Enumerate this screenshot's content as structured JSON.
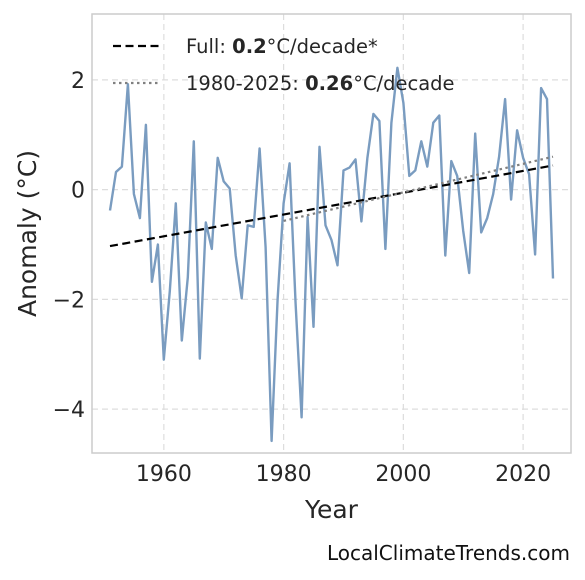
{
  "chart_data": {
    "type": "line",
    "xlabel": "Year",
    "ylabel": "Anomaly (°C)",
    "xlim": [
      1948,
      2028
    ],
    "ylim": [
      -4.8,
      3.2
    ],
    "xticks": [
      1960,
      1980,
      2000,
      2020
    ],
    "yticks": [
      -4,
      -2,
      0,
      2
    ],
    "ytick_labels": [
      "−4",
      "−2",
      "0",
      "2"
    ],
    "grid": true,
    "legend_position": "top-left",
    "series": [
      {
        "color": "#7a9cc0",
        "style": "solid",
        "x": [
          1951,
          1952,
          1953,
          1954,
          1955,
          1956,
          1957,
          1958,
          1959,
          1960,
          1961,
          1962,
          1963,
          1964,
          1965,
          1966,
          1967,
          1968,
          1969,
          1970,
          1971,
          1972,
          1973,
          1974,
          1975,
          1976,
          1977,
          1978,
          1979,
          1980,
          1981,
          1982,
          1983,
          1984,
          1985,
          1986,
          1987,
          1988,
          1989,
          1990,
          1991,
          1992,
          1993,
          1994,
          1995,
          1996,
          1997,
          1998,
          1999,
          2000,
          2001,
          2002,
          2003,
          2004,
          2005,
          2006,
          2007,
          2008,
          2009,
          2010,
          2011,
          2012,
          2013,
          2014,
          2015,
          2016,
          2017,
          2018,
          2019,
          2020,
          2021,
          2022,
          2023,
          2024,
          2025
        ],
        "values": [
          -0.38,
          0.32,
          0.42,
          1.92,
          -0.08,
          -0.52,
          1.18,
          -1.68,
          -1.0,
          -3.1,
          -1.85,
          -0.25,
          -2.75,
          -1.6,
          0.88,
          -3.08,
          -0.6,
          -1.08,
          0.58,
          0.15,
          0.02,
          -1.2,
          -1.98,
          -0.65,
          -0.68,
          0.75,
          -1.05,
          -4.58,
          -2.0,
          -0.25,
          0.48,
          -2.08,
          -4.15,
          -0.5,
          -2.5,
          0.78,
          -0.65,
          -0.92,
          -1.38,
          0.35,
          0.4,
          0.55,
          -0.58,
          0.58,
          1.38,
          1.25,
          -1.08,
          1.22,
          2.22,
          1.58,
          0.25,
          0.35,
          0.88,
          0.42,
          1.22,
          1.35,
          -1.2,
          0.52,
          0.25,
          -0.75,
          -1.52,
          1.02,
          -0.78,
          -0.52,
          -0.08,
          0.6,
          1.65,
          -0.18,
          1.08,
          0.58,
          0.28,
          -1.18,
          1.85,
          1.65,
          -1.62
        ]
      },
      {
        "name": "Full: 0.2°C/decade*",
        "color": "#000000",
        "style": "dashed",
        "x": [
          1951,
          2025
        ],
        "values": [
          -1.03,
          0.44
        ]
      },
      {
        "name": "1980-2025: 0.26°C/decade",
        "color": "#808080",
        "style": "dotted",
        "x": [
          1980,
          2025
        ],
        "values": [
          -0.57,
          0.6
        ]
      }
    ],
    "legend": [
      {
        "prefix": "Full: ",
        "bold": "0.2",
        "suffix": "°C/decade*",
        "style": "dashed",
        "color": "#000000"
      },
      {
        "prefix": "1980-2025: ",
        "bold": "0.26",
        "suffix": "°C/decade",
        "style": "dotted",
        "color": "#808080"
      }
    ],
    "colors": {
      "grid": "#dddddd",
      "frame": "#cccccc",
      "text": "#262626"
    }
  },
  "watermark": "LocalClimateTrends.com"
}
